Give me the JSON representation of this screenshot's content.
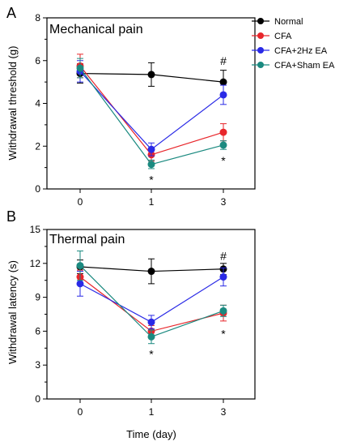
{
  "figure": {
    "x_label": "Time (day)",
    "legend_entries": [
      {
        "name": "Normal",
        "color": "#000000"
      },
      {
        "name": "CFA",
        "color": "#e8262b"
      },
      {
        "name": "CFA+2Hz EA",
        "color": "#2a2ae6"
      },
      {
        "name": "CFA+Sham EA",
        "color": "#1b8a80"
      }
    ]
  },
  "chart_data": [
    {
      "type": "line",
      "panel_letter": "A",
      "title": "Mechanical pain",
      "ylabel": "Withdrawal threshold (g)",
      "xlabel": "Time (day)",
      "x": [
        0,
        1,
        3
      ],
      "x_ticks": [
        "0",
        "1",
        "3"
      ],
      "ylim": [
        0,
        8
      ],
      "y_ticks": [
        "0",
        "2",
        "4",
        "6",
        "8"
      ],
      "legend_position": "top-right",
      "grid": false,
      "series": [
        {
          "name": "Normal",
          "color": "#000000",
          "values": [
            5.4,
            5.35,
            5.0
          ],
          "errors": [
            0.45,
            0.55,
            0.55
          ]
        },
        {
          "name": "CFA",
          "color": "#e8262b",
          "values": [
            5.75,
            1.6,
            2.65
          ],
          "errors": [
            0.55,
            0.3,
            0.4
          ]
        },
        {
          "name": "CFA+2Hz EA",
          "color": "#2a2ae6",
          "values": [
            5.5,
            1.85,
            4.4
          ],
          "errors": [
            0.5,
            0.3,
            0.45
          ]
        },
        {
          "name": "CFA+Sham EA",
          "color": "#1b8a80",
          "values": [
            5.65,
            1.15,
            2.05
          ],
          "errors": [
            0.45,
            0.2,
            0.2
          ]
        }
      ],
      "annotations": [
        {
          "text": "*",
          "x": 1,
          "y": 0.55
        },
        {
          "text": "*",
          "x": 3,
          "y": 1.45
        },
        {
          "text": "#",
          "x": 3,
          "y": 5.95
        }
      ]
    },
    {
      "type": "line",
      "panel_letter": "B",
      "title": "Thermal pain",
      "ylabel": "Withdrawal latency (s)",
      "xlabel": "Time (day)",
      "x": [
        0,
        1,
        3
      ],
      "x_ticks": [
        "0",
        "1",
        "3"
      ],
      "ylim": [
        0,
        15
      ],
      "y_ticks": [
        "0",
        "3",
        "6",
        "9",
        "12",
        "15"
      ],
      "grid": false,
      "series": [
        {
          "name": "Normal",
          "color": "#000000",
          "values": [
            11.7,
            11.3,
            11.5
          ],
          "errors": [
            0.6,
            1.1,
            0.5
          ]
        },
        {
          "name": "CFA",
          "color": "#e8262b",
          "values": [
            10.8,
            6.0,
            7.6
          ],
          "errors": [
            0.6,
            0.5,
            0.7
          ]
        },
        {
          "name": "CFA+2Hz EA",
          "color": "#2a2ae6",
          "values": [
            10.2,
            6.8,
            10.8
          ],
          "errors": [
            1.1,
            0.6,
            0.8
          ]
        },
        {
          "name": "CFA+Sham EA",
          "color": "#1b8a80",
          "values": [
            11.8,
            5.5,
            7.8
          ],
          "errors": [
            1.3,
            0.6,
            0.5
          ]
        }
      ],
      "annotations": [
        {
          "text": "*",
          "x": 1,
          "y": 4.2
        },
        {
          "text": "*",
          "x": 3,
          "y": 6.0
        },
        {
          "text": "#",
          "x": 3,
          "y": 12.6
        }
      ]
    }
  ]
}
